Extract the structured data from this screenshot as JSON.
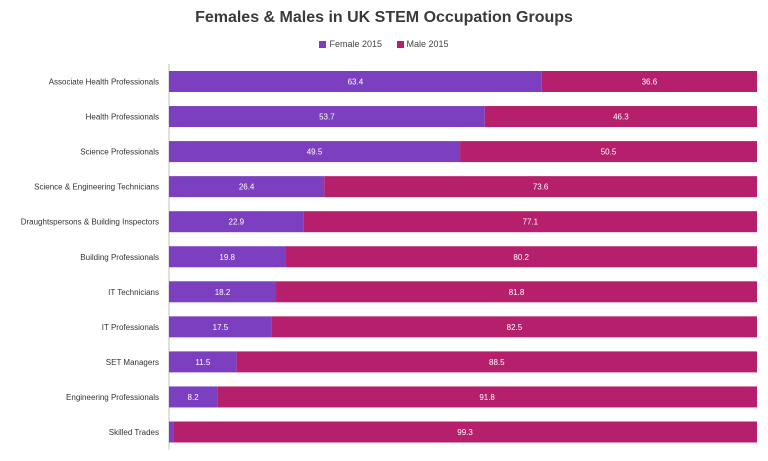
{
  "chart_data": {
    "type": "bar",
    "orientation": "horizontal",
    "stacked": "100%",
    "title": "Females & Males in UK STEM Occupation Groups",
    "legend_position": "top",
    "grid": false,
    "xlim": [
      0,
      100
    ],
    "categories": [
      "Associate Health Professionals",
      "Health Professionals",
      "Science Professionals",
      "Science & Engineering Technicians",
      "Draughtspersons & Building Inspectors",
      "Building Professionals",
      "IT Technicians",
      "IT Professionals",
      "SET Managers",
      "Engineering Professionals",
      "Skilled Trades"
    ],
    "series": [
      {
        "name": "Female 2015",
        "color": "#7b3fbf",
        "values": [
          63.4,
          53.7,
          49.5,
          26.4,
          22.9,
          19.8,
          18.2,
          17.5,
          11.5,
          8.2,
          0.7
        ],
        "labels": [
          "63.4",
          "53.7",
          "49.5",
          "26.4",
          "22.9",
          "19.8",
          "18.2",
          "17.5",
          "11.5",
          "8.2",
          "0.7"
        ]
      },
      {
        "name": "Male 2015",
        "color": "#b51f6b",
        "values": [
          36.6,
          46.3,
          50.5,
          73.6,
          77.1,
          80.2,
          81.8,
          82.5,
          88.5,
          91.8,
          99.3
        ],
        "labels": [
          "36.6",
          "46.3",
          "50.5",
          "73.6",
          "77.1",
          "80.2",
          "81.8",
          "82.5",
          "88.5",
          "91.8",
          "99.3"
        ]
      }
    ]
  }
}
